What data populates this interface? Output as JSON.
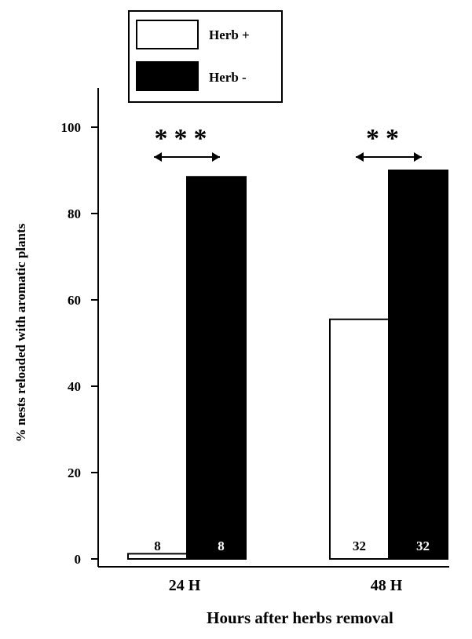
{
  "chart_data": {
    "type": "bar",
    "title": "",
    "xlabel": "Hours after herbs removal",
    "ylabel": "% nests reloaded with aromatic plants",
    "categories": [
      "24 H",
      "48 H"
    ],
    "series": [
      {
        "name": "Herb +",
        "values": [
          1.2,
          55.5
        ],
        "color": "#ffffff",
        "n_labels": [
          "8",
          "32"
        ]
      },
      {
        "name": "Herb -",
        "values": [
          88.5,
          90.0
        ],
        "color": "#000000",
        "n_labels": [
          "8",
          "32"
        ]
      }
    ],
    "ylim": [
      0,
      100
    ],
    "yticks": [
      0,
      20,
      40,
      60,
      80,
      100
    ],
    "significance": [
      "***",
      "**"
    ],
    "grid": false,
    "legend_position": "top-left"
  }
}
